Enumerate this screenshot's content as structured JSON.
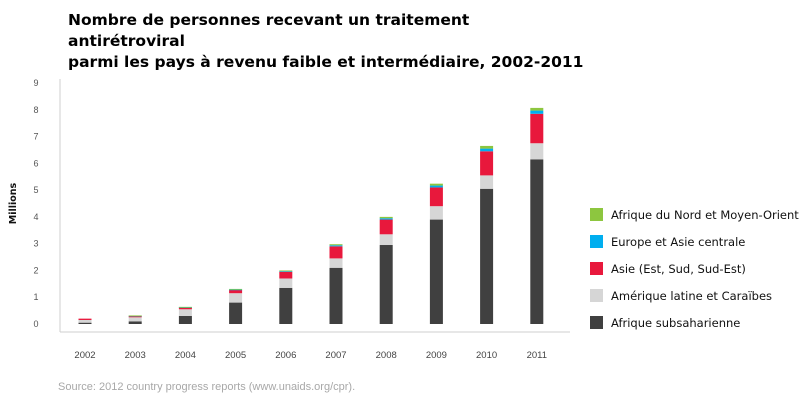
{
  "chart_data": {
    "type": "bar",
    "stacked": true,
    "title": [
      "Nombre de personnes recevant un traitement antirétroviral",
      "parmi les pays à revenu faible et intermédiaire, 2002-2011"
    ],
    "ylabel": "Millions",
    "xlabel": "",
    "ylim": [
      0,
      9
    ],
    "yticks": [
      "0",
      "1",
      "2",
      "3",
      "4",
      "5",
      "6",
      "7",
      "8",
      "9"
    ],
    "categories": [
      "2002",
      "2003",
      "2004",
      "2005",
      "2006",
      "2007",
      "2008",
      "2009",
      "2010",
      "2011"
    ],
    "grid": false,
    "legend_position": "right",
    "series": [
      {
        "name": "Afrique subsaharienne",
        "color": "#404040",
        "values": [
          0.05,
          0.1,
          0.3,
          0.8,
          1.35,
          2.1,
          2.95,
          3.9,
          5.05,
          6.15
        ]
      },
      {
        "name": "Amérique latine et Caraïbes",
        "color": "#d6d6d6",
        "values": [
          0.1,
          0.15,
          0.25,
          0.35,
          0.35,
          0.35,
          0.4,
          0.5,
          0.5,
          0.6
        ]
      },
      {
        "name": "Asie (Est, Sud, Sud-Est)",
        "color": "#e8183c",
        "values": [
          0.05,
          0.05,
          0.07,
          0.12,
          0.25,
          0.45,
          0.55,
          0.7,
          0.9,
          1.1
        ]
      },
      {
        "name": "Europe et Asie centrale",
        "color": "#00aeef",
        "values": [
          0.0,
          0.01,
          0.01,
          0.02,
          0.03,
          0.04,
          0.05,
          0.07,
          0.1,
          0.12
        ]
      },
      {
        "name": "Afrique du Nord et Moyen-Orient",
        "color": "#8dc63f",
        "values": [
          0.0,
          0.01,
          0.01,
          0.02,
          0.02,
          0.04,
          0.05,
          0.07,
          0.1,
          0.1
        ]
      }
    ],
    "legend_order": [
      4,
      3,
      2,
      1,
      0
    ],
    "source": "Source: 2012 country progress reports (www.unaids.org/cpr)."
  }
}
